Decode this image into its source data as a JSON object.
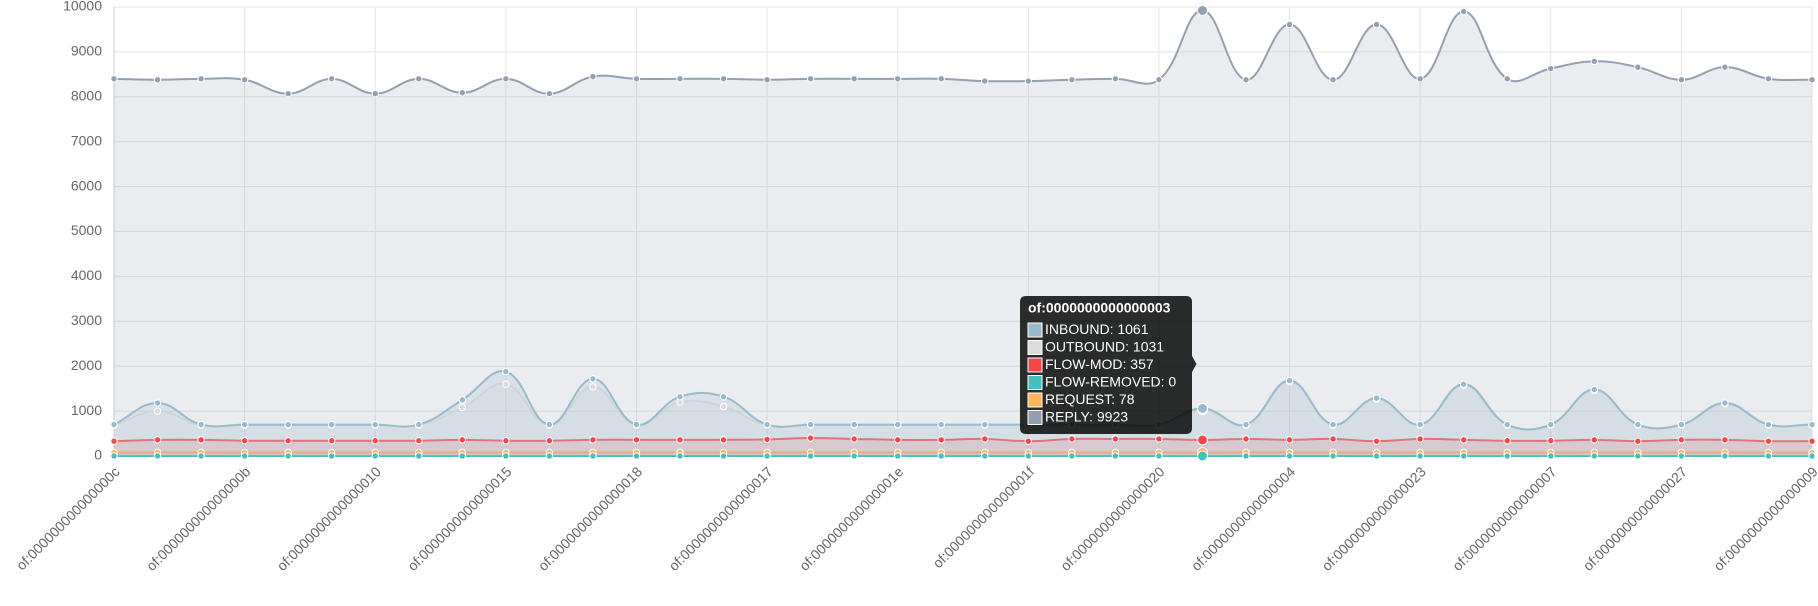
{
  "chart_data": {
    "type": "line",
    "categories": [
      "of:000000000000000c",
      null,
      null,
      "of:000000000000000b",
      null,
      null,
      "of:0000000000000010",
      null,
      null,
      "of:0000000000000015",
      null,
      null,
      "of:0000000000000018",
      null,
      null,
      "of:0000000000000017",
      null,
      null,
      "of:000000000000001e",
      null,
      null,
      "of:000000000000001f",
      null,
      null,
      "of:0000000000000020",
      "of:0000000000000003",
      null,
      "of:0000000000000004",
      null,
      null,
      "of:0000000000000023",
      null,
      null,
      "of:0000000000000007",
      null,
      null,
      "of:0000000000000027",
      null,
      null,
      "of:0000000000000009"
    ],
    "series": [
      {
        "name": "INBOUND",
        "color": "#97bbcd",
        "values": [
          700,
          1180,
          700,
          700,
          700,
          700,
          700,
          700,
          1250,
          1880,
          700,
          1720,
          700,
          1320,
          1320,
          700,
          700,
          700,
          700,
          700,
          700,
          700,
          700,
          700,
          700,
          1061,
          700,
          1680,
          700,
          1290,
          700,
          1600,
          700,
          700,
          1480,
          700,
          700,
          1180,
          700,
          700
        ]
      },
      {
        "name": "OUTBOUND",
        "color": "#dcdcdc",
        "values": [
          690,
          1000,
          690,
          690,
          690,
          690,
          690,
          690,
          1080,
          1600,
          690,
          1540,
          690,
          1200,
          1100,
          690,
          690,
          690,
          690,
          690,
          690,
          690,
          690,
          690,
          690,
          1031,
          690,
          1650,
          690,
          1270,
          690,
          1580,
          690,
          690,
          1460,
          690,
          690,
          1160,
          690,
          690
        ]
      },
      {
        "name": "FLOW-MOD",
        "color": "#f7464a",
        "values": [
          330,
          360,
          360,
          340,
          340,
          340,
          340,
          340,
          360,
          340,
          340,
          360,
          360,
          360,
          360,
          370,
          400,
          380,
          360,
          360,
          380,
          330,
          380,
          380,
          380,
          357,
          380,
          360,
          380,
          330,
          380,
          360,
          340,
          340,
          360,
          330,
          360,
          360,
          330,
          330
        ]
      },
      {
        "name": "FLOW-REMOVED",
        "color": "#46bfbd",
        "values": [
          0,
          0,
          0,
          0,
          0,
          0,
          0,
          0,
          0,
          0,
          0,
          0,
          0,
          0,
          0,
          0,
          0,
          0,
          0,
          0,
          0,
          0,
          0,
          0,
          0,
          0,
          0,
          0,
          0,
          0,
          0,
          0,
          0,
          0,
          0,
          0,
          0,
          0,
          0,
          0
        ]
      },
      {
        "name": "REQUEST",
        "color": "#fdb45c",
        "values": [
          78,
          80,
          80,
          78,
          78,
          78,
          78,
          78,
          80,
          78,
          78,
          80,
          80,
          80,
          80,
          80,
          82,
          80,
          80,
          80,
          80,
          76,
          80,
          80,
          80,
          78,
          80,
          80,
          80,
          76,
          80,
          80,
          78,
          78,
          80,
          76,
          80,
          80,
          76,
          76
        ]
      },
      {
        "name": "REPLY",
        "color": "#949fb1",
        "values": [
          8400,
          8380,
          8400,
          8380,
          8070,
          8400,
          8070,
          8400,
          8090,
          8400,
          8070,
          8450,
          8400,
          8400,
          8400,
          8380,
          8400,
          8400,
          8400,
          8400,
          8350,
          8350,
          8380,
          8400,
          8380,
          9923,
          8380,
          9610,
          8380,
          9610,
          8400,
          9900,
          8400,
          8630,
          8790,
          8660,
          8380,
          8660,
          8400,
          8380
        ]
      }
    ],
    "ylim": [
      0,
      10000
    ],
    "yticks": [
      0,
      1000,
      2000,
      3000,
      4000,
      5000,
      6000,
      7000,
      8000,
      9000,
      10000
    ],
    "grid": true
  }
}
